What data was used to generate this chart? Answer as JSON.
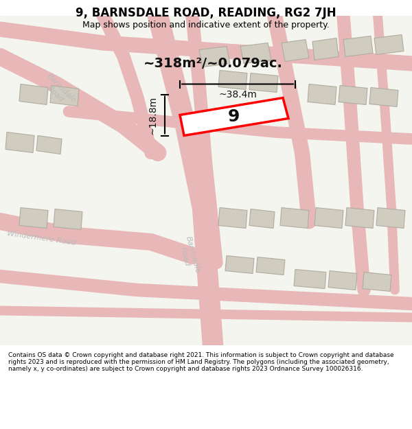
{
  "title": "9, BARNSDALE ROAD, READING, RG2 7JH",
  "subtitle": "Map shows position and indicative extent of the property.",
  "area_label": "~318m²/~0.079ac.",
  "width_label": "~38.4m",
  "height_label": "~18.8m",
  "property_number": "9",
  "footer": "Contains OS data © Crown copyright and database right 2021. This information is subject to Crown copyright and database rights 2023 and is reproduced with the permission of HM Land Registry. The polygons (including the associated geometry, namely x, y co-ordinates) are subject to Crown copyright and database rights 2023 Ordnance Survey 100026316.",
  "bg_color": "#f5f5f0",
  "map_bg": "#f0eeeb",
  "road_color": "#e8c8c8",
  "building_color": "#d8d4cc",
  "building_edge": "#aaaaaa",
  "property_color": "#ff0000",
  "dim_color": "#000000",
  "title_color": "#000000",
  "footer_color": "#000000"
}
